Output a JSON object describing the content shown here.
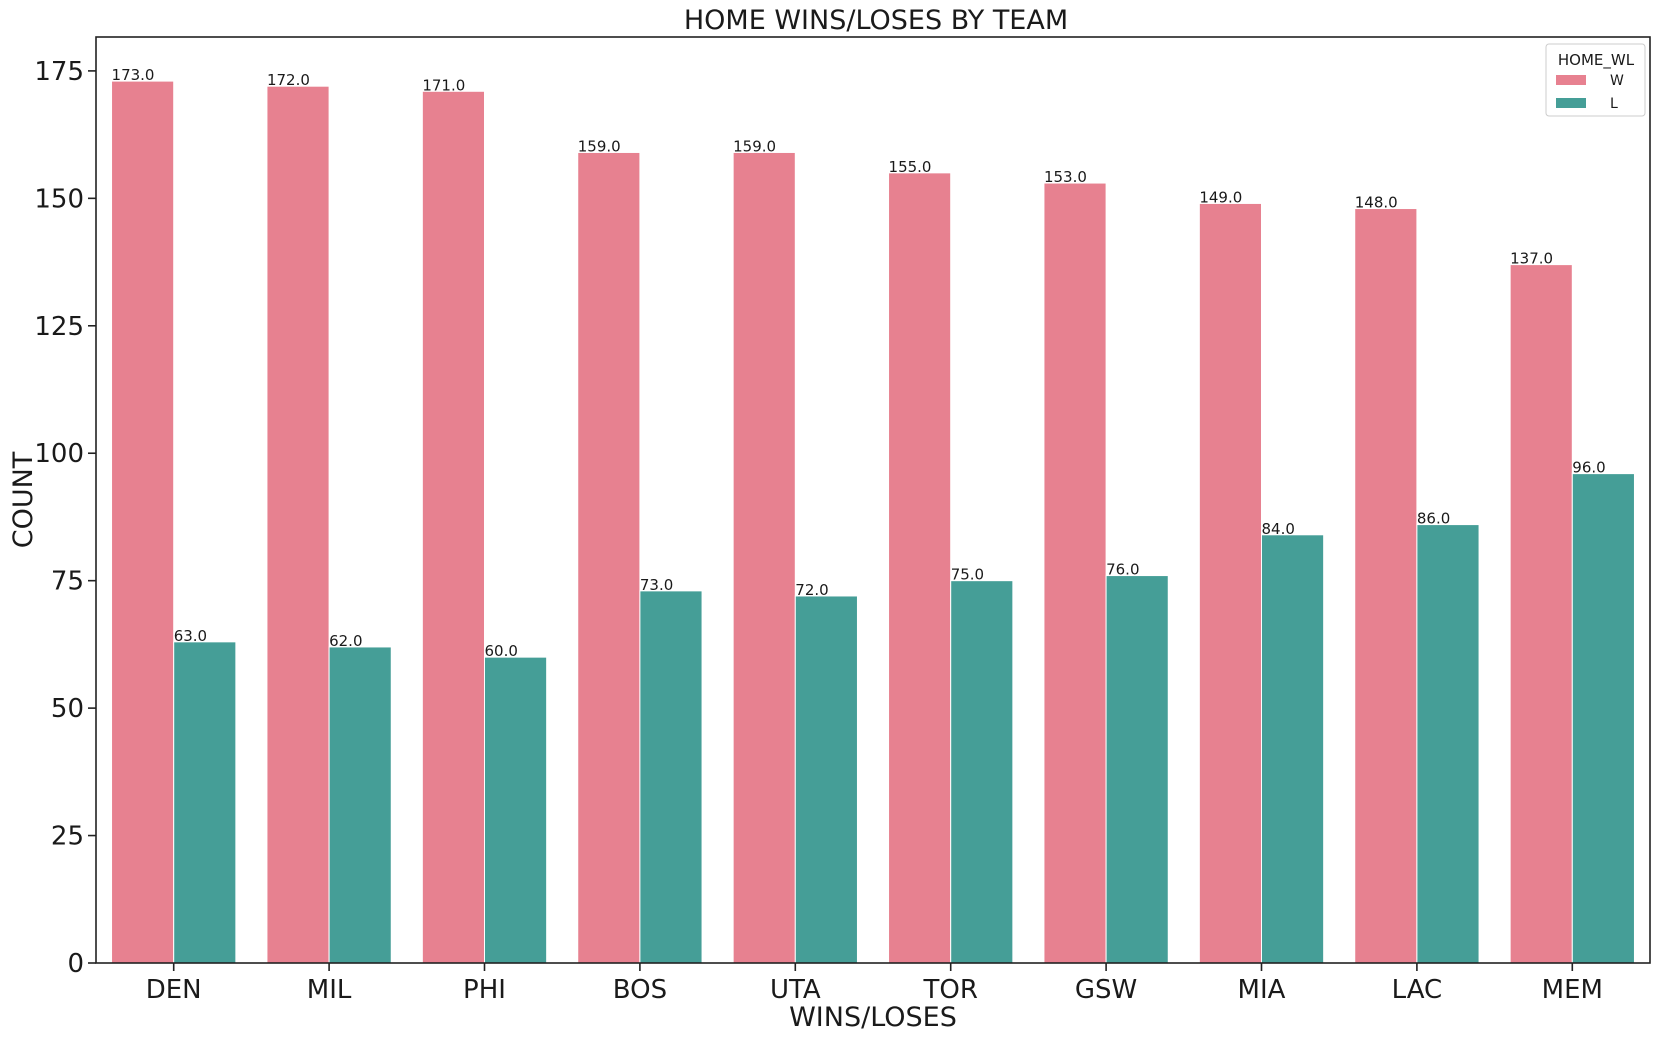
{
  "chart_data": {
    "type": "bar",
    "title": "HOME WINS/LOSES BY TEAM",
    "xlabel": "WINS/LOSES",
    "ylabel": "COUNT",
    "categories": [
      "DEN",
      "MIL",
      "PHI",
      "BOS",
      "UTA",
      "TOR",
      "GSW",
      "MIA",
      "LAC",
      "MEM"
    ],
    "series": [
      {
        "name": "W",
        "color": "#e78190",
        "values": [
          173.0,
          172.0,
          171.0,
          159.0,
          159.0,
          155.0,
          153.0,
          149.0,
          148.0,
          137.0
        ],
        "labels": [
          "173.0",
          "172.0",
          "171.0",
          "159.0",
          "159.0",
          "155.0",
          "153.0",
          "149.0",
          "148.0",
          "137.0"
        ]
      },
      {
        "name": "L",
        "color": "#459e97",
        "values": [
          63.0,
          62.0,
          60.0,
          73.0,
          72.0,
          75.0,
          76.0,
          84.0,
          86.0,
          96.0
        ],
        "labels": [
          "63.0",
          "62.0",
          "60.0",
          "73.0",
          "72.0",
          "75.0",
          "76.0",
          "84.0",
          "86.0",
          "96.0"
        ]
      }
    ],
    "ylim": [
      0,
      181.65
    ],
    "yticks": [
      0,
      25,
      50,
      75,
      100,
      125,
      150,
      175
    ],
    "ytick_labels": [
      "0",
      "25",
      "50",
      "75",
      "100",
      "125",
      "150",
      "175"
    ],
    "legend": {
      "title": "HOME_WL",
      "placement": "top-right"
    },
    "grid": false
  }
}
